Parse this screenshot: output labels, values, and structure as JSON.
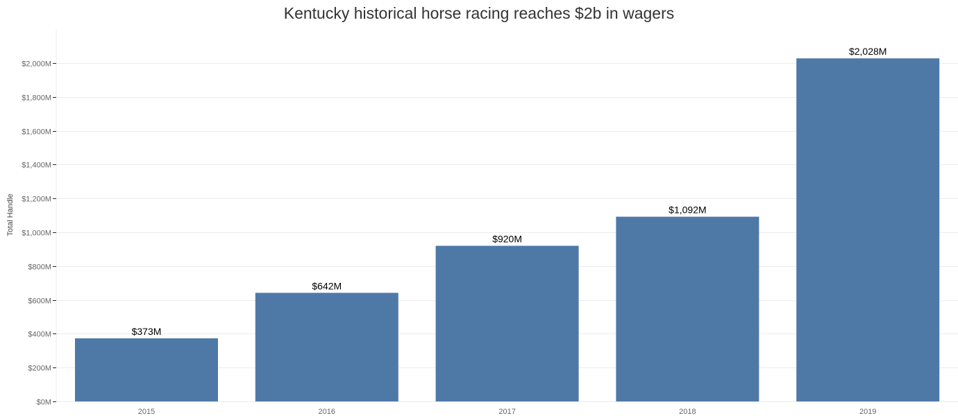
{
  "chart_data": {
    "type": "bar",
    "title": "Kentucky historical horse racing reaches $2b in wagers",
    "xlabel": "",
    "ylabel": "Total Handle",
    "categories": [
      "2015",
      "2016",
      "2017",
      "2018",
      "2019"
    ],
    "values": [
      373,
      642,
      920,
      1092,
      2028
    ],
    "value_labels": [
      "$373M",
      "$642M",
      "$920M",
      "$1,092M",
      "$2,028M"
    ],
    "value_unit": "millions of dollars",
    "ylim": [
      0,
      2200
    ],
    "yticks": [
      0,
      200,
      400,
      600,
      800,
      1000,
      1200,
      1400,
      1600,
      1800,
      2000
    ],
    "ytick_labels": [
      "$0M",
      "$200M",
      "$400M",
      "$600M",
      "$800M",
      "$1,000M",
      "$1,200M",
      "$1,400M",
      "$1,600M",
      "$1,800M",
      "$2,000M"
    ],
    "grid": true,
    "legend": "none",
    "colors": {
      "bar": "#4e79a7",
      "title": "#333333",
      "tick_text": "#666666",
      "label_text": "#000000",
      "grid": "#ececec"
    }
  }
}
